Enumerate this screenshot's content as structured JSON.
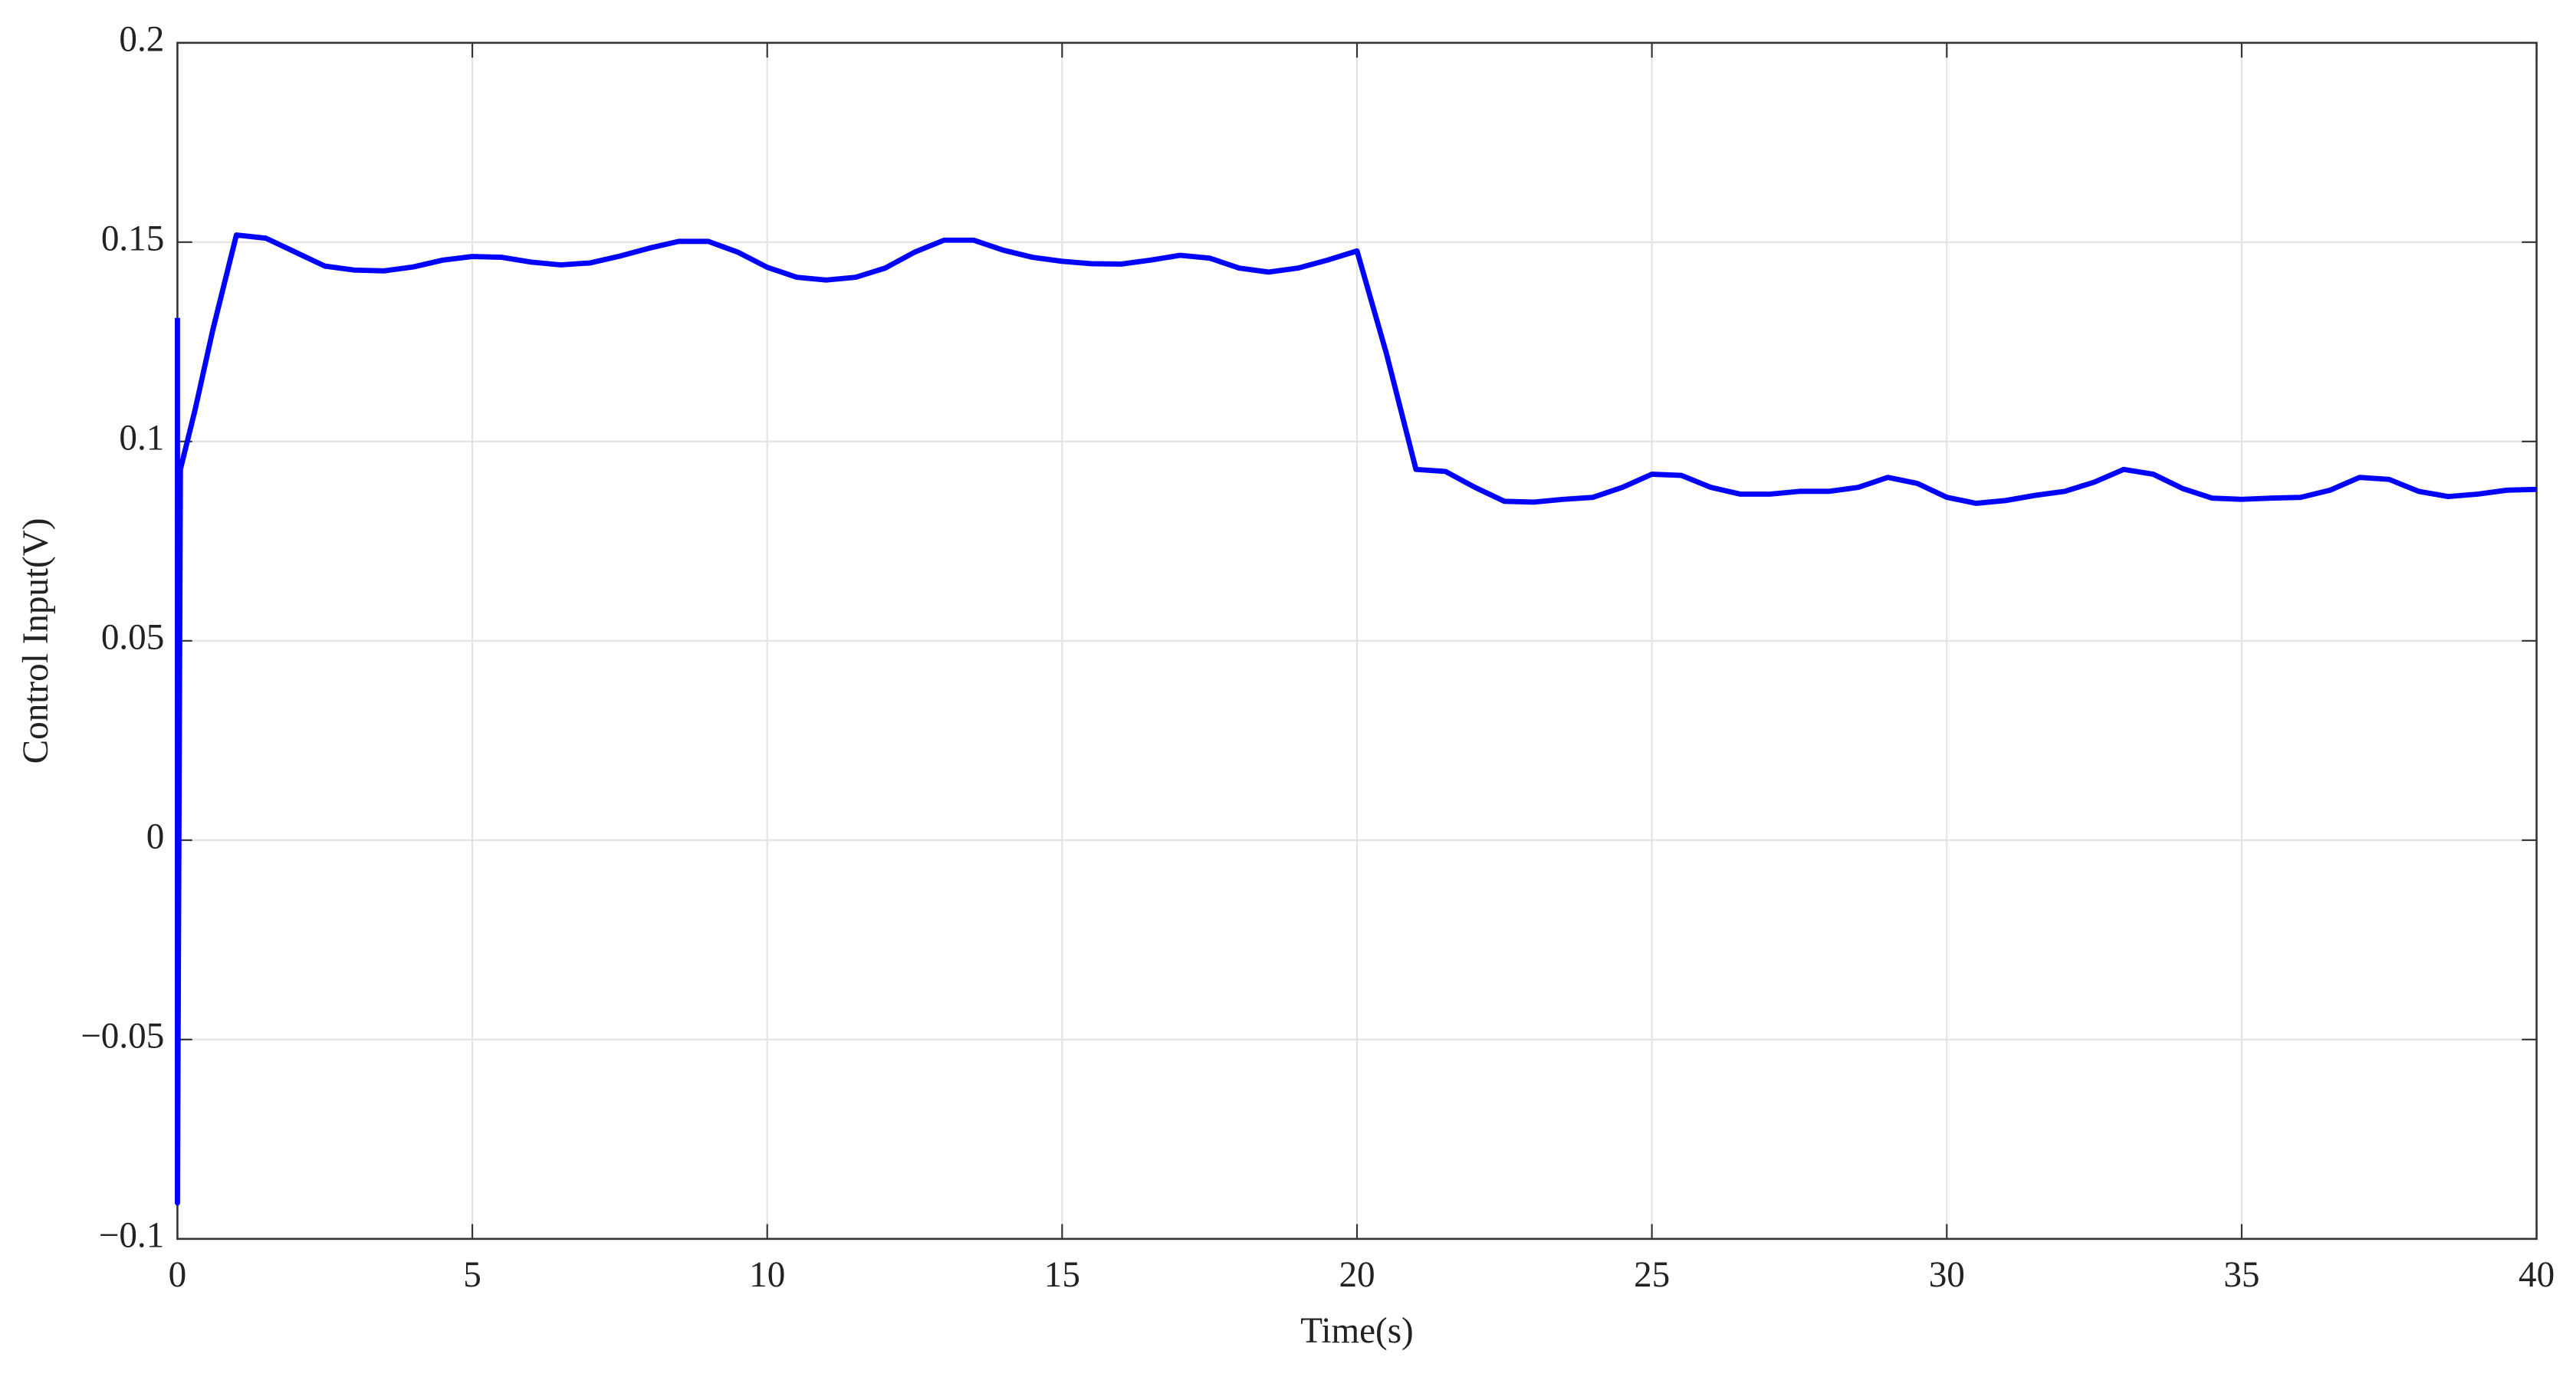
{
  "chart_data": {
    "type": "line",
    "xlabel": "Time(s)",
    "ylabel": "Control Input(V)",
    "x": [
      0,
      0,
      0.05,
      0.3,
      0.6,
      1,
      1.5,
      2,
      2.5,
      3,
      3.5,
      4,
      4.5,
      5,
      5.5,
      6,
      6.5,
      7,
      7.5,
      8,
      8.5,
      9,
      9.5,
      10,
      10.5,
      11,
      11.5,
      12,
      12.5,
      13,
      13.5,
      14,
      14.5,
      15,
      15.5,
      16,
      16.5,
      17,
      17.5,
      18,
      18.5,
      19,
      19.5,
      20,
      20.5,
      21,
      21.5,
      22,
      22.5,
      23,
      23.5,
      24,
      24.5,
      25,
      25.5,
      26,
      26.5,
      27,
      27.5,
      28,
      28.5,
      29,
      29.5,
      30,
      30.5,
      31,
      31.5,
      32,
      32.5,
      33,
      33.5,
      34,
      34.5,
      35,
      35.5,
      36,
      36.5,
      37,
      37.5,
      38,
      38.5,
      39,
      39.5,
      40
    ],
    "series": [
      {
        "color": "#0000ff",
        "values": [
          0.131,
          -0.091,
          0.093,
          0.108,
          0.128,
          0.1518,
          0.151,
          0.1475,
          0.144,
          0.143,
          0.1428,
          0.1438,
          0.1455,
          0.1464,
          0.1462,
          0.145,
          0.1443,
          0.1448,
          0.1465,
          0.1485,
          0.1502,
          0.1502,
          0.1475,
          0.1437,
          0.1412,
          0.1405,
          0.1412,
          0.1435,
          0.1475,
          0.1505,
          0.1505,
          0.148,
          0.1462,
          0.1452,
          0.1446,
          0.1445,
          0.1455,
          0.1467,
          0.146,
          0.1435,
          0.1425,
          0.1435,
          0.1455,
          0.1478,
          0.122,
          0.093,
          0.0925,
          0.0885,
          0.085,
          0.0848,
          0.0855,
          0.086,
          0.0885,
          0.0918,
          0.0915,
          0.0885,
          0.0868,
          0.0868,
          0.0875,
          0.0875,
          0.0885,
          0.091,
          0.0895,
          0.086,
          0.0845,
          0.0852,
          0.0865,
          0.0875,
          0.0898,
          0.093,
          0.0918,
          0.0882,
          0.0858,
          0.0855,
          0.0858,
          0.086,
          0.0878,
          0.091,
          0.0905,
          0.0875,
          0.0862,
          0.0868,
          0.0878,
          0.088
        ]
      }
    ],
    "xlim": [
      0,
      40
    ],
    "xticks": [
      0,
      5,
      10,
      15,
      20,
      25,
      30,
      35,
      40
    ],
    "ylim": [
      -0.1,
      0.2
    ],
    "yticks": [
      {
        "value": -0.1,
        "label": "−0.1"
      },
      {
        "value": -0.05,
        "label": "−0.05"
      },
      0,
      0.05,
      0.1,
      0.15,
      0.2
    ],
    "grid": true
  }
}
